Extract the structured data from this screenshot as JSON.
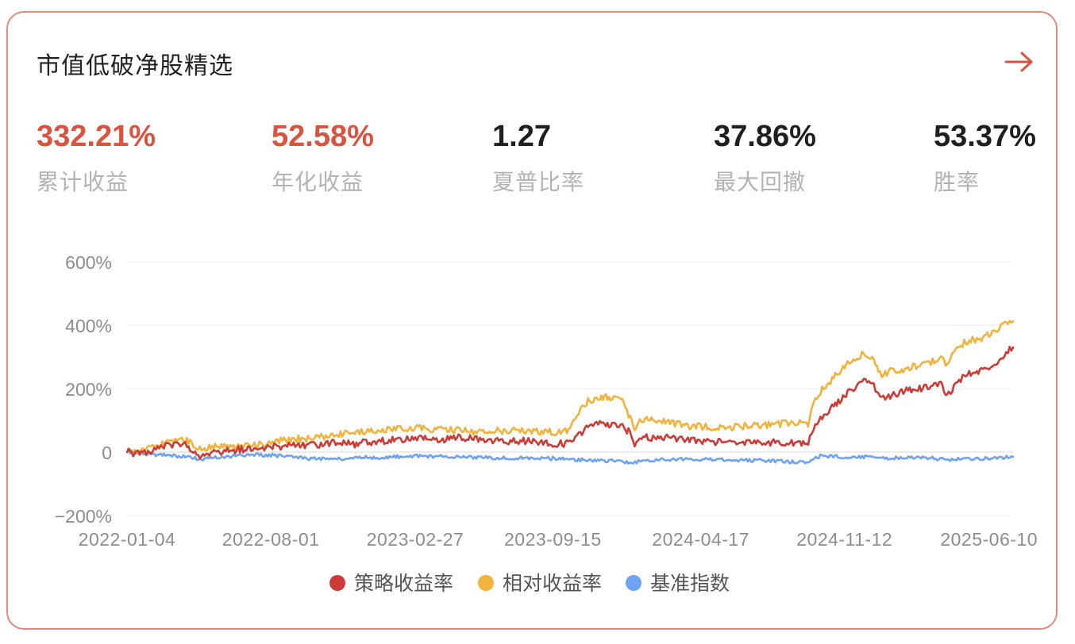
{
  "card": {
    "title": "市值低破净股精选"
  },
  "icons": {
    "open": "arrow-right-icon"
  },
  "colors": {
    "accent": "#d9533f",
    "dark": "#1f1f1f",
    "label": "#b3b3b3",
    "strategy": "#cc3b35",
    "relative": "#f2b33d",
    "benchmark": "#6ea2f5"
  },
  "stats": [
    {
      "value": "332.21",
      "unit": "%",
      "label": "累计收益"
    },
    {
      "value": "52.58",
      "unit": "%",
      "label": "年化收益"
    },
    {
      "value": "1.27",
      "unit": "",
      "label": "夏普比率"
    },
    {
      "value": "37.86",
      "unit": "%",
      "label": "最大回撤"
    },
    {
      "value": "53.37",
      "unit": "%",
      "label": "胜率"
    }
  ],
  "chart_data": {
    "type": "line",
    "x_ticks": [
      "2022-01-04",
      "2022-08-01",
      "2023-02-27",
      "2023-09-15",
      "2024-04-17",
      "2024-11-12",
      "2025-06-10"
    ],
    "x_range": [
      "2022-01-04",
      "2025-07-15"
    ],
    "y_ticks": [
      -200,
      0,
      200,
      400,
      600
    ],
    "y_tick_labels": [
      "−200%",
      "0",
      "200%",
      "400%",
      "600%"
    ],
    "ylim": [
      -200,
      600
    ],
    "grid": true,
    "legend_position": "bottom-center",
    "series": [
      {
        "name": "策略收益率",
        "color": "#cc3b35",
        "points": [
          [
            "2022-01-04",
            0
          ],
          [
            "2022-01-20",
            -5
          ],
          [
            "2022-02-15",
            8
          ],
          [
            "2022-03-01",
            20
          ],
          [
            "2022-03-20",
            28
          ],
          [
            "2022-04-01",
            20
          ],
          [
            "2022-04-20",
            -10
          ],
          [
            "2022-05-10",
            0
          ],
          [
            "2022-06-01",
            5
          ],
          [
            "2022-07-01",
            10
          ],
          [
            "2022-08-01",
            15
          ],
          [
            "2022-09-01",
            20
          ],
          [
            "2022-10-01",
            22
          ],
          [
            "2022-11-01",
            30
          ],
          [
            "2022-12-01",
            25
          ],
          [
            "2023-01-01",
            35
          ],
          [
            "2023-02-01",
            38
          ],
          [
            "2023-02-27",
            45
          ],
          [
            "2023-04-01",
            40
          ],
          [
            "2023-05-01",
            45
          ],
          [
            "2023-06-01",
            40
          ],
          [
            "2023-07-01",
            35
          ],
          [
            "2023-08-01",
            35
          ],
          [
            "2023-09-01",
            30
          ],
          [
            "2023-09-15",
            25
          ],
          [
            "2023-10-10",
            28
          ],
          [
            "2023-10-25",
            60
          ],
          [
            "2023-11-05",
            80
          ],
          [
            "2023-11-20",
            90
          ],
          [
            "2023-12-10",
            85
          ],
          [
            "2023-12-25",
            80
          ],
          [
            "2024-01-05",
            60
          ],
          [
            "2024-01-12",
            25
          ],
          [
            "2024-01-22",
            50
          ],
          [
            "2024-02-10",
            45
          ],
          [
            "2024-03-01",
            50
          ],
          [
            "2024-03-20",
            40
          ],
          [
            "2024-04-17",
            35
          ],
          [
            "2024-05-20",
            30
          ],
          [
            "2024-06-20",
            32
          ],
          [
            "2024-07-20",
            30
          ],
          [
            "2024-08-20",
            30
          ],
          [
            "2024-09-20",
            25
          ],
          [
            "2024-09-28",
            80
          ],
          [
            "2024-10-08",
            110
          ],
          [
            "2024-10-25",
            140
          ],
          [
            "2024-11-12",
            180
          ],
          [
            "2024-11-25",
            200
          ],
          [
            "2024-12-10",
            225
          ],
          [
            "2024-12-20",
            220
          ],
          [
            "2025-01-05",
            170
          ],
          [
            "2025-01-20",
            180
          ],
          [
            "2025-02-10",
            195
          ],
          [
            "2025-03-01",
            200
          ],
          [
            "2025-03-20",
            210
          ],
          [
            "2025-04-01",
            220
          ],
          [
            "2025-04-10",
            175
          ],
          [
            "2025-04-25",
            220
          ],
          [
            "2025-05-10",
            250
          ],
          [
            "2025-05-30",
            255
          ],
          [
            "2025-06-10",
            265
          ],
          [
            "2025-06-25",
            290
          ],
          [
            "2025-07-05",
            315
          ],
          [
            "2025-07-15",
            330
          ]
        ]
      },
      {
        "name": "相对收益率",
        "color": "#f2b33d",
        "points": [
          [
            "2022-01-04",
            0
          ],
          [
            "2022-01-20",
            -2
          ],
          [
            "2022-02-15",
            15
          ],
          [
            "2022-03-01",
            30
          ],
          [
            "2022-03-20",
            40
          ],
          [
            "2022-04-01",
            35
          ],
          [
            "2022-04-20",
            10
          ],
          [
            "2022-05-10",
            20
          ],
          [
            "2022-06-01",
            15
          ],
          [
            "2022-07-01",
            20
          ],
          [
            "2022-08-01",
            30
          ],
          [
            "2022-09-01",
            40
          ],
          [
            "2022-10-01",
            45
          ],
          [
            "2022-11-01",
            55
          ],
          [
            "2022-12-01",
            60
          ],
          [
            "2023-01-01",
            70
          ],
          [
            "2023-02-01",
            72
          ],
          [
            "2023-02-27",
            75
          ],
          [
            "2023-04-01",
            70
          ],
          [
            "2023-05-01",
            68
          ],
          [
            "2023-06-01",
            65
          ],
          [
            "2023-07-01",
            68
          ],
          [
            "2023-08-01",
            65
          ],
          [
            "2023-09-01",
            65
          ],
          [
            "2023-09-15",
            62
          ],
          [
            "2023-10-10",
            70
          ],
          [
            "2023-10-25",
            130
          ],
          [
            "2023-11-05",
            160
          ],
          [
            "2023-11-20",
            175
          ],
          [
            "2023-12-10",
            170
          ],
          [
            "2023-12-25",
            160
          ],
          [
            "2024-01-05",
            110
          ],
          [
            "2024-01-12",
            75
          ],
          [
            "2024-01-22",
            105
          ],
          [
            "2024-02-10",
            100
          ],
          [
            "2024-03-01",
            95
          ],
          [
            "2024-03-20",
            85
          ],
          [
            "2024-04-17",
            80
          ],
          [
            "2024-05-20",
            78
          ],
          [
            "2024-06-20",
            82
          ],
          [
            "2024-07-20",
            85
          ],
          [
            "2024-08-20",
            90
          ],
          [
            "2024-09-20",
            90
          ],
          [
            "2024-09-28",
            150
          ],
          [
            "2024-10-08",
            190
          ],
          [
            "2024-10-25",
            230
          ],
          [
            "2024-11-12",
            270
          ],
          [
            "2024-11-25",
            290
          ],
          [
            "2024-12-10",
            310
          ],
          [
            "2024-12-20",
            300
          ],
          [
            "2025-01-05",
            245
          ],
          [
            "2025-01-20",
            255
          ],
          [
            "2025-02-10",
            265
          ],
          [
            "2025-03-01",
            275
          ],
          [
            "2025-03-20",
            285
          ],
          [
            "2025-04-01",
            295
          ],
          [
            "2025-04-10",
            275
          ],
          [
            "2025-04-25",
            330
          ],
          [
            "2025-05-10",
            350
          ],
          [
            "2025-05-30",
            360
          ],
          [
            "2025-06-10",
            370
          ],
          [
            "2025-06-25",
            390
          ],
          [
            "2025-07-05",
            402
          ],
          [
            "2025-07-15",
            412
          ]
        ]
      },
      {
        "name": "基准指数",
        "color": "#6ea2f5",
        "points": [
          [
            "2022-01-04",
            0
          ],
          [
            "2022-02-01",
            -5
          ],
          [
            "2022-03-01",
            -10
          ],
          [
            "2022-04-01",
            -15
          ],
          [
            "2022-04-20",
            -22
          ],
          [
            "2022-05-10",
            -18
          ],
          [
            "2022-07-01",
            -8
          ],
          [
            "2022-08-01",
            -10
          ],
          [
            "2022-10-01",
            -20
          ],
          [
            "2022-11-01",
            -22
          ],
          [
            "2022-12-01",
            -18
          ],
          [
            "2023-02-01",
            -15
          ],
          [
            "2023-02-27",
            -12
          ],
          [
            "2023-05-01",
            -15
          ],
          [
            "2023-07-01",
            -18
          ],
          [
            "2023-09-01",
            -20
          ],
          [
            "2023-09-15",
            -20
          ],
          [
            "2023-11-01",
            -25
          ],
          [
            "2023-12-10",
            -28
          ],
          [
            "2024-01-10",
            -32
          ],
          [
            "2024-01-22",
            -30
          ],
          [
            "2024-02-10",
            -25
          ],
          [
            "2024-03-01",
            -22
          ],
          [
            "2024-04-17",
            -22
          ],
          [
            "2024-06-01",
            -25
          ],
          [
            "2024-08-01",
            -28
          ],
          [
            "2024-09-20",
            -32
          ],
          [
            "2024-10-08",
            -12
          ],
          [
            "2024-11-12",
            -15
          ],
          [
            "2024-12-10",
            -15
          ],
          [
            "2025-01-05",
            -20
          ],
          [
            "2025-03-01",
            -15
          ],
          [
            "2025-04-10",
            -25
          ],
          [
            "2025-05-10",
            -20
          ],
          [
            "2025-06-10",
            -20
          ],
          [
            "2025-07-15",
            -15
          ]
        ]
      }
    ]
  }
}
